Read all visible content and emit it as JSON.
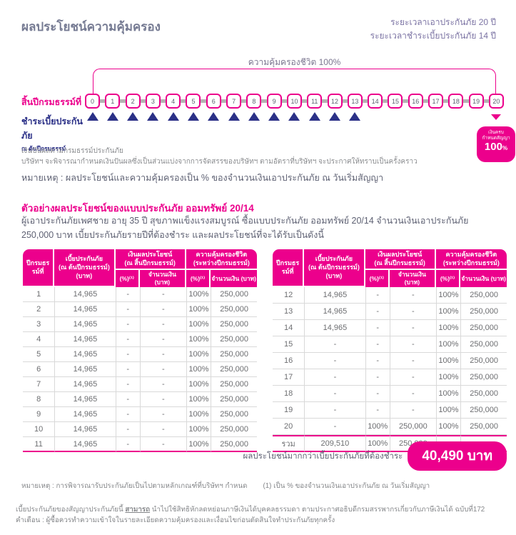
{
  "header": {
    "title": "ผลประโยชน์ความคุ้มครอง",
    "coverage_period": "ระยะเวลาเอาประกันภัย 20 ปี",
    "payment_period": "ระยะเวลาชำระเบี้ยประกันภัย 14 ปี"
  },
  "timeline": {
    "coverage_label": "ความคุ้มครองชีวิต 100%",
    "end_year_label": "สิ้นปีกรมธรรม์ที่",
    "pay_label": "ชำระเบี้ยประกันภัย",
    "pay_sublabel": "ณ ต้นปีกรมธรรม์",
    "years": [
      "0",
      "1",
      "2",
      "3",
      "4",
      "5",
      "6",
      "7",
      "8",
      "9",
      "10",
      "11",
      "12",
      "13",
      "14",
      "15",
      "16",
      "17",
      "18",
      "19",
      "20"
    ],
    "premium_payment_years": 14,
    "maturity_badge": {
      "line1": "เงินครบ",
      "line2": "กำหนดสัญญา",
      "value": "100",
      "unit": "%"
    }
  },
  "dividend_note": {
    "line1": "เงินปันผลตามกรมธรรม์ประกันภัย",
    "line2": "บริษัทฯ จะพิจารณากำหนดเงินปันผลซึ่งเป็นส่วนแบ่งจากการจัดสรรของบริษัทฯ ตามอัตราที่บริษัทฯ จะประกาศให้ทราบเป็นครั้งคราว"
  },
  "percent_note": "หมายเหตุ : ผลประโยชน์และความคุ้มครองเป็น % ของจำนวนเงินเอาประกันภัย ณ วันเริ่มสัญญา",
  "example": {
    "heading": "ตัวอย่างผลประโยชน์ของแบบประกันภัย ออมทรัพย์ 20/14",
    "description": "ผู้เอาประกันภัยเพศชาย อายุ 35 ปี สุขภาพแข็งแรงสมบูรณ์ ซื้อแบบประกันภัย ออมทรัพย์  20/14 จำนวนเงินเอาประกันภัย 250,000 บาท เบี้ยประกันภัยรายปีที่ต้องชำระ และผลประโยชน์ที่จะได้รับเป็นดังนี้"
  },
  "benefit_table": {
    "headers": {
      "year": "ปีกรมธรรม์ที่",
      "premium": "เบี้ยประกันภัย\n(ณ ต้นปีกรมธรรม์)\n(บาท)",
      "benefit_group": "เงินผลประโยชน์\n(ณ สิ้นปีกรมธรรม์)",
      "coverage_group": "ความคุ้มครองชีวิต\n(ระหว่างปีกรมธรรม์)",
      "pct": "(%)⁽¹⁾",
      "amount": "จำนวนเงิน (บาท)"
    },
    "left_rows": [
      [
        "1",
        "14,965",
        "-",
        "-",
        "100%",
        "250,000"
      ],
      [
        "2",
        "14,965",
        "-",
        "-",
        "100%",
        "250,000"
      ],
      [
        "3",
        "14,965",
        "-",
        "-",
        "100%",
        "250,000"
      ],
      [
        "4",
        "14,965",
        "-",
        "-",
        "100%",
        "250,000"
      ],
      [
        "5",
        "14,965",
        "-",
        "-",
        "100%",
        "250,000"
      ],
      [
        "6",
        "14,965",
        "-",
        "-",
        "100%",
        "250,000"
      ],
      [
        "7",
        "14,965",
        "-",
        "-",
        "100%",
        "250,000"
      ],
      [
        "8",
        "14,965",
        "-",
        "-",
        "100%",
        "250,000"
      ],
      [
        "9",
        "14,965",
        "-",
        "-",
        "100%",
        "250,000"
      ],
      [
        "10",
        "14,965",
        "-",
        "-",
        "100%",
        "250,000"
      ],
      [
        "11",
        "14,965",
        "-",
        "-",
        "100%",
        "250,000"
      ]
    ],
    "right_rows": [
      [
        "12",
        "14,965",
        "-",
        "-",
        "100%",
        "250,000"
      ],
      [
        "13",
        "14,965",
        "-",
        "-",
        "100%",
        "250,000"
      ],
      [
        "14",
        "14,965",
        "-",
        "-",
        "100%",
        "250,000"
      ],
      [
        "15",
        "-",
        "-",
        "-",
        "100%",
        "250,000"
      ],
      [
        "16",
        "-",
        "-",
        "-",
        "100%",
        "250,000"
      ],
      [
        "17",
        "-",
        "-",
        "-",
        "100%",
        "250,000"
      ],
      [
        "18",
        "-",
        "-",
        "-",
        "100%",
        "250,000"
      ],
      [
        "19",
        "-",
        "-",
        "-",
        "100%",
        "250,000"
      ],
      [
        "20",
        "-",
        "100%",
        "250,000",
        "100%",
        "250,000"
      ]
    ],
    "total_row": [
      "รวม",
      "209,510",
      "100%",
      "250,000",
      "",
      ""
    ]
  },
  "summary": {
    "label": "ผลประโยชน์มากกว่าเบี้ยประกันภัยที่ต้องชำระ",
    "value": "40,490 บาท"
  },
  "footer": {
    "note": "หมายเหตุ : การพิจารณารับประกันภัยเป็นไปตามหลักเกณฑ์ที่บริษัทฯ กำหนด",
    "note2": "(1) เป็น % ของจำนวนเงินเอาประกันภัย ณ วันเริ่มสัญญา",
    "tax_prefix": "เบี้ยประกันภัยของสัญญาประกันภัยนี้ ",
    "tax_underline": "สามารถ",
    "tax_suffix": " นำไปใช้สิทธิหักลดหย่อนภาษีเงินได้บุคคลธรรมดา ตามประกาศอธิบดีกรมสรรพากรเกี่ยวกับภาษีเงินได้ ฉบับที่172",
    "warning": "คำเตือน : ผู้ซื้อควรทำความเข้าใจในรายละเอียดความคุ้มครองและเงื่อนไขก่อนตัดสินใจทำประกันภัยทุกครั้ง"
  },
  "colors": {
    "pink": "#ec008c",
    "navy": "#2b3087"
  }
}
